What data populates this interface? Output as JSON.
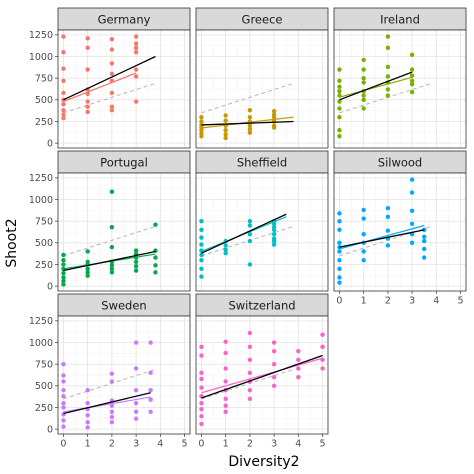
{
  "chart_data": {
    "type": "scatter",
    "layout": "facet-grid",
    "xlabel": "Diversity2",
    "ylabel": "Shoot2",
    "xlim": [
      0,
      5
    ],
    "ylim": [
      0,
      1250
    ],
    "x_ticks": [
      0,
      1,
      2,
      3,
      4,
      5
    ],
    "y_ticks": [
      0,
      250,
      500,
      750,
      1000,
      1250
    ],
    "grid": true,
    "legend": "none",
    "overall_fit_line": {
      "style": "dashed",
      "color": "#bbbbbb",
      "x": [
        0,
        3.8
      ],
      "y": [
        350,
        690
      ]
    },
    "panels": [
      {
        "name": "Germany",
        "color": "#f8766d",
        "points": [
          [
            0,
            1230
          ],
          [
            0,
            1050
          ],
          [
            0,
            860
          ],
          [
            0,
            720
          ],
          [
            0,
            580
          ],
          [
            0,
            500
          ],
          [
            0,
            450
          ],
          [
            0,
            380
          ],
          [
            0,
            330
          ],
          [
            0,
            290
          ],
          [
            1,
            1210
          ],
          [
            1,
            1100
          ],
          [
            1,
            850
          ],
          [
            1,
            620
          ],
          [
            1,
            570
          ],
          [
            1,
            480
          ],
          [
            1,
            420
          ],
          [
            1,
            360
          ],
          [
            2,
            1200
          ],
          [
            2,
            1080
          ],
          [
            2,
            920
          ],
          [
            2,
            800
          ],
          [
            2,
            720
          ],
          [
            2,
            580
          ],
          [
            2,
            420
          ],
          [
            2,
            380
          ],
          [
            3,
            1230
          ],
          [
            3,
            1150
          ],
          [
            3,
            1100
          ],
          [
            3,
            1050
          ],
          [
            3,
            850
          ],
          [
            3,
            770
          ],
          [
            3,
            480
          ]
        ],
        "fit_black": [
          [
            0,
            500
          ],
          [
            3.8,
            1000
          ]
        ],
        "fit_color": [
          [
            0,
            480
          ],
          [
            3,
            810
          ]
        ]
      },
      {
        "name": "Greece",
        "color": "#c49a00",
        "points": [
          [
            0,
            300
          ],
          [
            0,
            250
          ],
          [
            0,
            210
          ],
          [
            0,
            180
          ],
          [
            0,
            150
          ],
          [
            0,
            110
          ],
          [
            0,
            80
          ],
          [
            1,
            320
          ],
          [
            1,
            260
          ],
          [
            1,
            200
          ],
          [
            1,
            150
          ],
          [
            1,
            100
          ],
          [
            1,
            60
          ],
          [
            2,
            380
          ],
          [
            2,
            300
          ],
          [
            2,
            250
          ],
          [
            2,
            200
          ],
          [
            2,
            160
          ],
          [
            2,
            120
          ],
          [
            3,
            370
          ],
          [
            3,
            330
          ],
          [
            3,
            300
          ],
          [
            3,
            250
          ],
          [
            3,
            200
          ],
          [
            3,
            180
          ]
        ],
        "fit_black": [
          [
            0,
            210
          ],
          [
            3.8,
            250
          ]
        ],
        "fit_color": [
          [
            0,
            175
          ],
          [
            3.8,
            300
          ]
        ]
      },
      {
        "name": "Ireland",
        "color": "#7cae00",
        "points": [
          [
            0,
            850
          ],
          [
            0,
            720
          ],
          [
            0,
            650
          ],
          [
            0,
            600
          ],
          [
            0,
            550
          ],
          [
            0,
            480
          ],
          [
            0,
            400
          ],
          [
            0,
            300
          ],
          [
            0,
            150
          ],
          [
            0,
            80
          ],
          [
            1,
            960
          ],
          [
            1,
            850
          ],
          [
            1,
            750
          ],
          [
            1,
            700
          ],
          [
            1,
            600
          ],
          [
            1,
            550
          ],
          [
            1,
            500
          ],
          [
            1,
            400
          ],
          [
            2,
            1230
          ],
          [
            2,
            1100
          ],
          [
            2,
            880
          ],
          [
            2,
            770
          ],
          [
            2,
            700
          ],
          [
            2,
            620
          ],
          [
            2,
            550
          ],
          [
            3,
            1020
          ],
          [
            3,
            850
          ],
          [
            3,
            780
          ],
          [
            3,
            720
          ],
          [
            3,
            680
          ],
          [
            3,
            590
          ]
        ],
        "fit_black": [
          [
            0,
            500
          ],
          [
            3,
            820
          ]
        ],
        "fit_color": [
          [
            0,
            530
          ],
          [
            3,
            760
          ]
        ]
      },
      {
        "name": "Portugal",
        "color": "#00a84f",
        "points": [
          [
            0,
            360
          ],
          [
            0,
            300
          ],
          [
            0,
            250
          ],
          [
            0,
            200
          ],
          [
            0,
            150
          ],
          [
            0,
            100
          ],
          [
            0,
            60
          ],
          [
            0,
            20
          ],
          [
            1,
            400
          ],
          [
            1,
            280
          ],
          [
            1,
            250
          ],
          [
            1,
            200
          ],
          [
            1,
            160
          ],
          [
            1,
            120
          ],
          [
            2,
            1090
          ],
          [
            2,
            680
          ],
          [
            2,
            450
          ],
          [
            2,
            280
          ],
          [
            2,
            240
          ],
          [
            2,
            200
          ],
          [
            2,
            160
          ],
          [
            3,
            410
          ],
          [
            3,
            370
          ],
          [
            3,
            330
          ],
          [
            3,
            280
          ],
          [
            3,
            230
          ],
          [
            3,
            180
          ],
          [
            3.8,
            710
          ],
          [
            3.8,
            410
          ],
          [
            3.8,
            330
          ],
          [
            3.8,
            240
          ],
          [
            3.8,
            160
          ]
        ],
        "fit_black": [
          [
            0,
            180
          ],
          [
            3.8,
            400
          ]
        ],
        "fit_color": [
          [
            0,
            200
          ],
          [
            3.8,
            370
          ]
        ]
      },
      {
        "name": "Sheffield",
        "color": "#00bfc4",
        "points": [
          [
            0,
            750
          ],
          [
            0,
            650
          ],
          [
            0,
            560
          ],
          [
            0,
            480
          ],
          [
            0,
            410
          ],
          [
            0,
            360
          ],
          [
            0,
            300
          ],
          [
            0,
            200
          ],
          [
            0,
            110
          ],
          [
            1,
            520
          ],
          [
            1,
            470
          ],
          [
            1,
            420
          ],
          [
            1,
            380
          ],
          [
            2,
            750
          ],
          [
            2,
            700
          ],
          [
            2,
            600
          ],
          [
            2,
            520
          ],
          [
            2,
            250
          ],
          [
            3,
            750
          ],
          [
            3,
            720
          ],
          [
            3,
            680
          ],
          [
            3,
            650
          ],
          [
            3,
            600
          ],
          [
            3,
            550
          ],
          [
            3,
            520
          ],
          [
            3,
            480
          ]
        ],
        "fit_black": [
          [
            0,
            380
          ],
          [
            3.5,
            830
          ]
        ],
        "fit_color": [
          [
            0,
            400
          ],
          [
            3.5,
            800
          ]
        ]
      },
      {
        "name": "Silwood",
        "color": "#00a9ff",
        "points": [
          [
            0,
            840
          ],
          [
            0,
            750
          ],
          [
            0,
            650
          ],
          [
            0,
            500
          ],
          [
            0,
            450
          ],
          [
            0,
            400
          ],
          [
            0,
            300
          ],
          [
            0,
            200
          ],
          [
            0,
            100
          ],
          [
            0,
            40
          ],
          [
            1,
            880
          ],
          [
            1,
            780
          ],
          [
            1,
            600
          ],
          [
            1,
            500
          ],
          [
            1,
            400
          ],
          [
            1,
            300
          ],
          [
            2,
            900
          ],
          [
            2,
            800
          ],
          [
            2,
            640
          ],
          [
            2,
            550
          ],
          [
            2,
            470
          ],
          [
            3,
            1230
          ],
          [
            3,
            1080
          ],
          [
            3,
            870
          ],
          [
            3,
            720
          ],
          [
            3,
            600
          ],
          [
            3,
            500
          ],
          [
            3.5,
            650
          ],
          [
            3.5,
            570
          ],
          [
            3.5,
            520
          ],
          [
            3.5,
            430
          ],
          [
            3.5,
            330
          ]
        ],
        "fit_black": [
          [
            0,
            450
          ],
          [
            3.5,
            650
          ]
        ],
        "fit_color": [
          [
            0,
            430
          ],
          [
            3.5,
            700
          ]
        ]
      },
      {
        "name": "Sweden",
        "color": "#c77cff",
        "points": [
          [
            0,
            750
          ],
          [
            0,
            620
          ],
          [
            0,
            550
          ],
          [
            0,
            450
          ],
          [
            0,
            380
          ],
          [
            0,
            300
          ],
          [
            0,
            250
          ],
          [
            0,
            170
          ],
          [
            0,
            100
          ],
          [
            0,
            30
          ],
          [
            1,
            450
          ],
          [
            1,
            300
          ],
          [
            1,
            230
          ],
          [
            1,
            160
          ],
          [
            1,
            80
          ],
          [
            1,
            20
          ],
          [
            2,
            640
          ],
          [
            2,
            550
          ],
          [
            2,
            330
          ],
          [
            2,
            270
          ],
          [
            2,
            200
          ],
          [
            2,
            140
          ],
          [
            2,
            80
          ],
          [
            3,
            1000
          ],
          [
            3,
            700
          ],
          [
            3,
            450
          ],
          [
            3,
            300
          ],
          [
            3,
            200
          ],
          [
            3,
            120
          ],
          [
            3.6,
            1000
          ],
          [
            3.6,
            650
          ],
          [
            3.6,
            450
          ],
          [
            3.6,
            340
          ],
          [
            3.6,
            200
          ]
        ],
        "fit_black": [
          [
            0,
            180
          ],
          [
            3.6,
            420
          ]
        ],
        "fit_color": [
          [
            0,
            200
          ],
          [
            3.6,
            370
          ]
        ]
      },
      {
        "name": "Switzerland",
        "color": "#ff61cc",
        "points": [
          [
            0,
            950
          ],
          [
            0,
            850
          ],
          [
            0,
            650
          ],
          [
            0,
            580
          ],
          [
            0,
            480
          ],
          [
            0,
            380
          ],
          [
            0,
            300
          ],
          [
            0,
            230
          ],
          [
            0,
            150
          ],
          [
            0,
            60
          ],
          [
            1,
            1010
          ],
          [
            1,
            880
          ],
          [
            1,
            700
          ],
          [
            1,
            550
          ],
          [
            1,
            450
          ],
          [
            1,
            350
          ],
          [
            1,
            270
          ],
          [
            1,
            200
          ],
          [
            2,
            1110
          ],
          [
            2,
            950
          ],
          [
            2,
            800
          ],
          [
            2,
            650
          ],
          [
            2,
            550
          ],
          [
            2,
            450
          ],
          [
            2,
            350
          ],
          [
            3,
            1000
          ],
          [
            3,
            900
          ],
          [
            3,
            750
          ],
          [
            3,
            600
          ],
          [
            3,
            500
          ],
          [
            4,
            900
          ],
          [
            4,
            800
          ],
          [
            4,
            700
          ],
          [
            4,
            600
          ],
          [
            5,
            1090
          ],
          [
            5,
            950
          ],
          [
            5,
            800
          ],
          [
            5,
            700
          ]
        ],
        "fit_black": [
          [
            0,
            360
          ],
          [
            5,
            850
          ]
        ],
        "fit_color": [
          [
            0,
            420
          ],
          [
            5,
            820
          ]
        ]
      }
    ]
  }
}
